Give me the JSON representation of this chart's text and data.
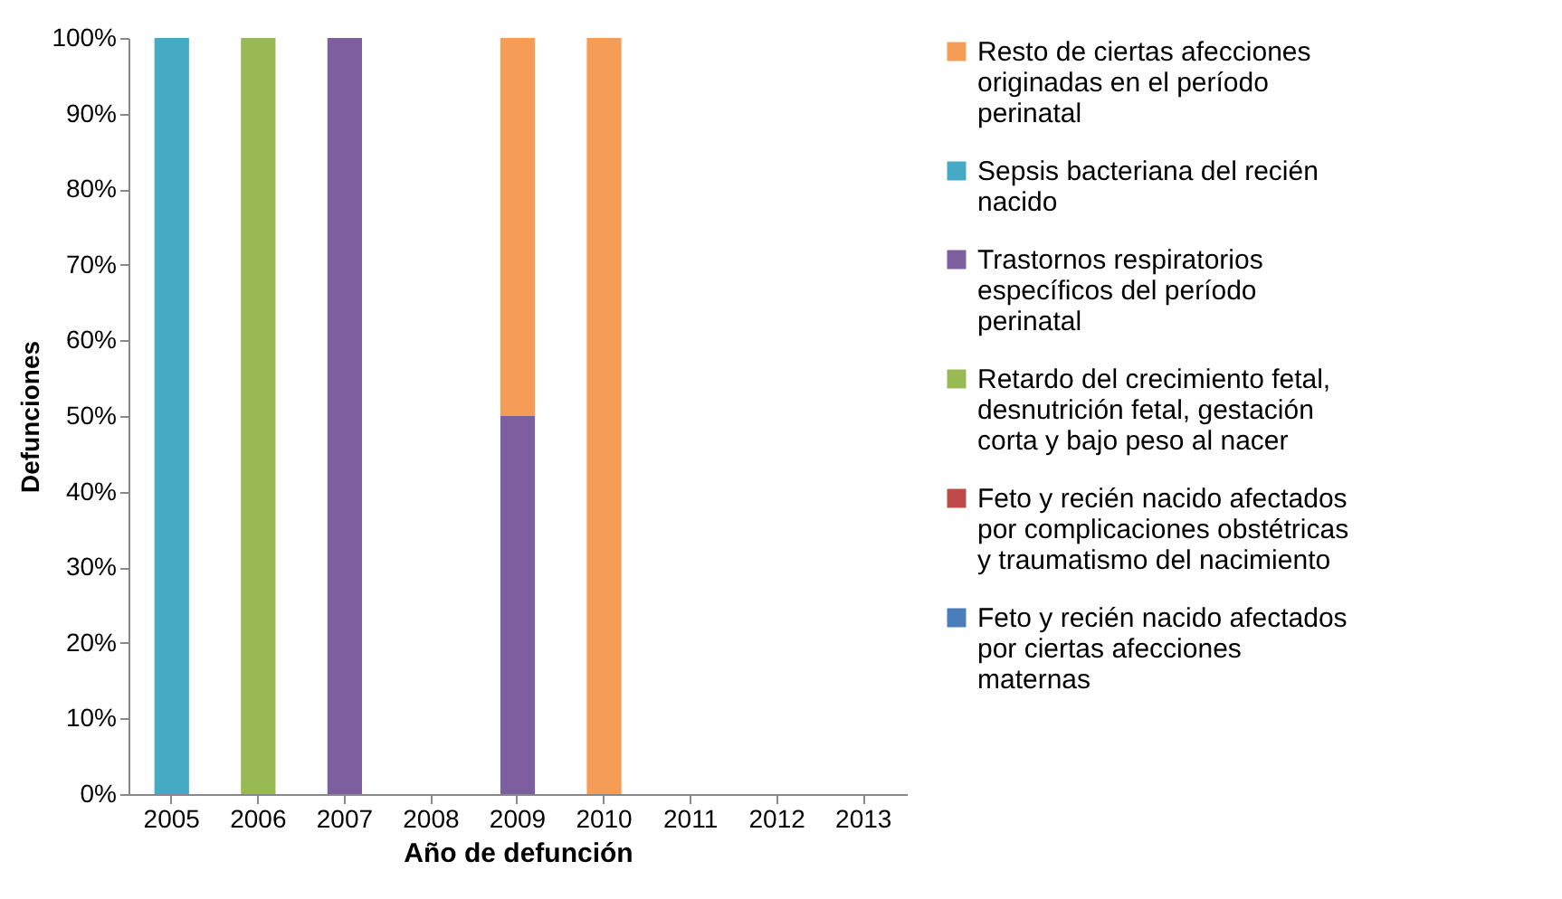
{
  "chart_data": {
    "type": "bar",
    "stacked": true,
    "xlabel": "Año de defunción",
    "ylabel": "Defunciones",
    "categories": [
      "2005",
      "2006",
      "2007",
      "2008",
      "2009",
      "2010",
      "2011",
      "2012",
      "2013"
    ],
    "series": [
      {
        "name": "Feto y recién nacido afectados por ciertas afecciones maternas",
        "color": "#4a7ebb",
        "values": [
          0,
          0,
          0,
          0,
          0,
          0,
          0,
          0,
          0
        ]
      },
      {
        "name": "Feto y recién nacido afectados por complicaciones obstétricas y traumatismo del nacimiento",
        "color": "#be4b48",
        "values": [
          0,
          0,
          0,
          0,
          0,
          0,
          0,
          0,
          0
        ]
      },
      {
        "name": "Retardo del crecimiento fetal, desnutrición fetal, gestación corta y bajo peso al nacer",
        "color": "#98b954",
        "values": [
          0,
          100,
          0,
          0,
          0,
          0,
          0,
          0,
          0
        ]
      },
      {
        "name": "Trastornos respiratorios específicos del período perinatal",
        "color": "#7d5fa0",
        "values": [
          0,
          0,
          100,
          0,
          50,
          0,
          0,
          0,
          0
        ]
      },
      {
        "name": "Sepsis bacteriana del recién nacido",
        "color": "#46aac5",
        "values": [
          100,
          0,
          0,
          0,
          0,
          0,
          0,
          0,
          0
        ]
      },
      {
        "name": "Resto de ciertas afecciones originadas en el período perinatal",
        "color": "#f59d56",
        "values": [
          0,
          0,
          0,
          0,
          50,
          100,
          0,
          0,
          0
        ]
      }
    ],
    "ylim": [
      0,
      100
    ],
    "yticks": [
      {
        "value": 0,
        "label": "0%"
      },
      {
        "value": 10,
        "label": "10%"
      },
      {
        "value": 20,
        "label": "20%"
      },
      {
        "value": 30,
        "label": "30%"
      },
      {
        "value": 40,
        "label": "40%"
      },
      {
        "value": 50,
        "label": "50%"
      },
      {
        "value": 60,
        "label": "60%"
      },
      {
        "value": 70,
        "label": "70%"
      },
      {
        "value": 80,
        "label": "80%"
      },
      {
        "value": 90,
        "label": "90%"
      },
      {
        "value": 100,
        "label": "100%"
      }
    ],
    "grid": false,
    "legend": "right"
  }
}
